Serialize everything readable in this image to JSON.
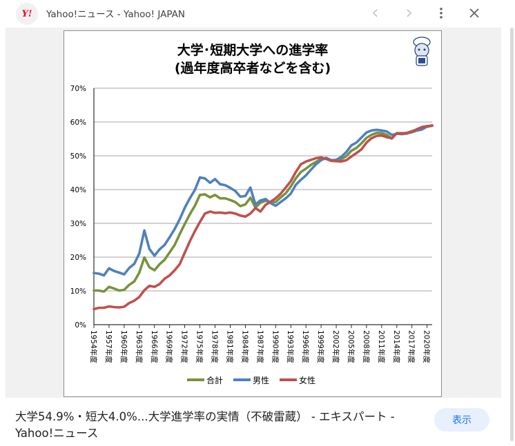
{
  "header": {
    "logo_text": "Y!",
    "title": "Yahoo!ニュース - Yahoo! JAPAN",
    "icons": [
      "chevron-left-icon",
      "chevron-right-icon",
      "more-vert-icon",
      "close-icon"
    ]
  },
  "caption": {
    "text": "大学54.9%・短大4.0%...大学進学率の実情（不破雷蔵） - エキスパート - Yahoo!ニュース"
  },
  "show_button": {
    "label": "表示"
  },
  "colors": {
    "green": "#77933c",
    "blue": "#4f81bd",
    "red": "#c0504d",
    "accent": "#1a73e8"
  },
  "chart_data": {
    "type": "line",
    "title": "大学･短期大学への進学率",
    "subtitle": "(過年度高卒者などを含む)",
    "xlabel": "",
    "ylabel": "",
    "ylim": [
      0,
      70
    ],
    "yticks": [
      "0%",
      "10%",
      "20%",
      "30%",
      "40%",
      "50%",
      "60%",
      "70%"
    ],
    "grid": true,
    "legend_position": "bottom",
    "x": [
      1954,
      1955,
      1956,
      1957,
      1958,
      1959,
      1960,
      1961,
      1962,
      1963,
      1964,
      1965,
      1966,
      1967,
      1968,
      1969,
      1970,
      1971,
      1972,
      1973,
      1974,
      1975,
      1976,
      1977,
      1978,
      1979,
      1980,
      1981,
      1982,
      1983,
      1984,
      1985,
      1986,
      1987,
      1988,
      1989,
      1990,
      1991,
      1992,
      1993,
      1994,
      1995,
      1996,
      1997,
      1998,
      1999,
      2000,
      2001,
      2002,
      2003,
      2004,
      2005,
      2006,
      2007,
      2008,
      2009,
      2010,
      2011,
      2012,
      2013,
      2014,
      2015,
      2016,
      2017,
      2018,
      2019,
      2020,
      2021
    ],
    "x_tick_labels": [
      "1954年度",
      "1957年度",
      "1960年度",
      "1963年度",
      "1966年度",
      "1969年度",
      "1972年度",
      "1975年度",
      "1978年度",
      "1981年度",
      "1984年度",
      "1987年度",
      "1990年度",
      "1993年度",
      "1996年度",
      "1999年度",
      "2002年度",
      "2005年度",
      "2008年度",
      "2011年度",
      "2014年度",
      "2017年度",
      "2020年度"
    ],
    "series": [
      {
        "name": "合計",
        "color": "#77933c",
        "values": [
          10.1,
          10.1,
          9.8,
          11.2,
          10.7,
          10.1,
          10.3,
          11.8,
          12.8,
          15.4,
          19.9,
          17.0,
          16.1,
          17.9,
          19.2,
          21.4,
          23.6,
          26.8,
          29.8,
          32.7,
          35.2,
          38.4,
          38.6,
          37.7,
          38.4,
          37.4,
          37.4,
          36.9,
          36.3,
          35.1,
          35.6,
          37.6,
          34.7,
          36.1,
          36.7,
          36.3,
          36.3,
          37.7,
          38.9,
          40.9,
          43.3,
          45.2,
          46.2,
          47.3,
          48.2,
          49.1,
          49.1,
          48.6,
          48.6,
          49.0,
          49.9,
          51.5,
          52.3,
          53.7,
          55.3,
          56.2,
          56.8,
          56.7,
          56.2,
          55.1,
          56.7,
          56.5,
          56.8,
          57.3,
          57.8,
          58.1,
          58.6,
          58.9
        ]
      },
      {
        "name": "男性",
        "color": "#4f81bd",
        "values": [
          15.3,
          15.1,
          14.6,
          16.7,
          15.9,
          15.4,
          14.9,
          16.8,
          18.0,
          21.1,
          27.9,
          22.4,
          20.4,
          22.3,
          23.6,
          25.9,
          28.3,
          31.2,
          34.6,
          37.4,
          39.9,
          43.6,
          43.3,
          42.0,
          43.1,
          41.6,
          41.3,
          40.5,
          39.6,
          37.9,
          38.1,
          40.6,
          35.6,
          36.8,
          37.2,
          36.0,
          35.2,
          36.3,
          37.4,
          38.8,
          41.4,
          42.9,
          44.2,
          45.9,
          47.5,
          48.7,
          49.4,
          48.7,
          48.8,
          49.7,
          51.1,
          53.1,
          53.9,
          55.4,
          56.9,
          57.5,
          57.7,
          57.5,
          57.2,
          56.2,
          56.5,
          56.4,
          56.6,
          57.0,
          57.5,
          57.8,
          58.7,
          59.0
        ]
      },
      {
        "name": "女性",
        "color": "#c0504d",
        "values": [
          4.6,
          5.0,
          5.0,
          5.4,
          5.2,
          5.1,
          5.3,
          6.4,
          7.1,
          8.2,
          10.2,
          11.5,
          11.2,
          12.0,
          13.6,
          14.6,
          16.1,
          17.9,
          21.3,
          24.7,
          27.7,
          30.4,
          32.9,
          33.5,
          33.1,
          33.2,
          33.0,
          33.2,
          32.9,
          32.3,
          32.0,
          32.9,
          34.5,
          33.5,
          35.5,
          36.4,
          37.4,
          38.8,
          40.6,
          42.5,
          45.2,
          47.5,
          48.3,
          48.8,
          49.3,
          49.5,
          49.1,
          48.5,
          48.4,
          48.3,
          48.7,
          49.8,
          50.8,
          51.9,
          53.9,
          55.2,
          55.9,
          56.0,
          55.5,
          55.2,
          56.7,
          56.7,
          56.7,
          57.1,
          57.9,
          58.5,
          58.8,
          58.9
        ]
      }
    ]
  }
}
